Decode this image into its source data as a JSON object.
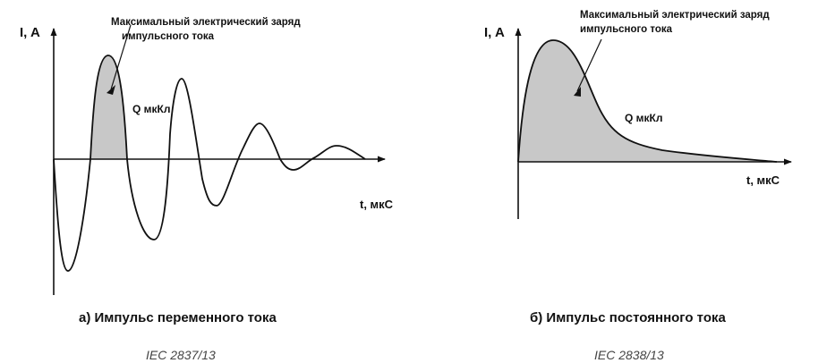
{
  "left_figure": {
    "y_axis_label": "I, A",
    "x_axis_label": "t, мкС",
    "annotation": [
      "Максимальный электрический заряд",
      "импульсного тока"
    ],
    "charge_label": "Q мкКл",
    "caption": "а) Импульс переменного тока",
    "figure_code": "IEC 2837/13"
  },
  "right_figure": {
    "y_axis_label": "I, A",
    "x_axis_label": "t, мкС",
    "annotation": [
      "Максимальный электрический заряд",
      "импульсного тока"
    ],
    "charge_label": "Q мкКл",
    "caption": "б) Импульс постоянного тока",
    "figure_code": "IEC 2838/13"
  }
}
